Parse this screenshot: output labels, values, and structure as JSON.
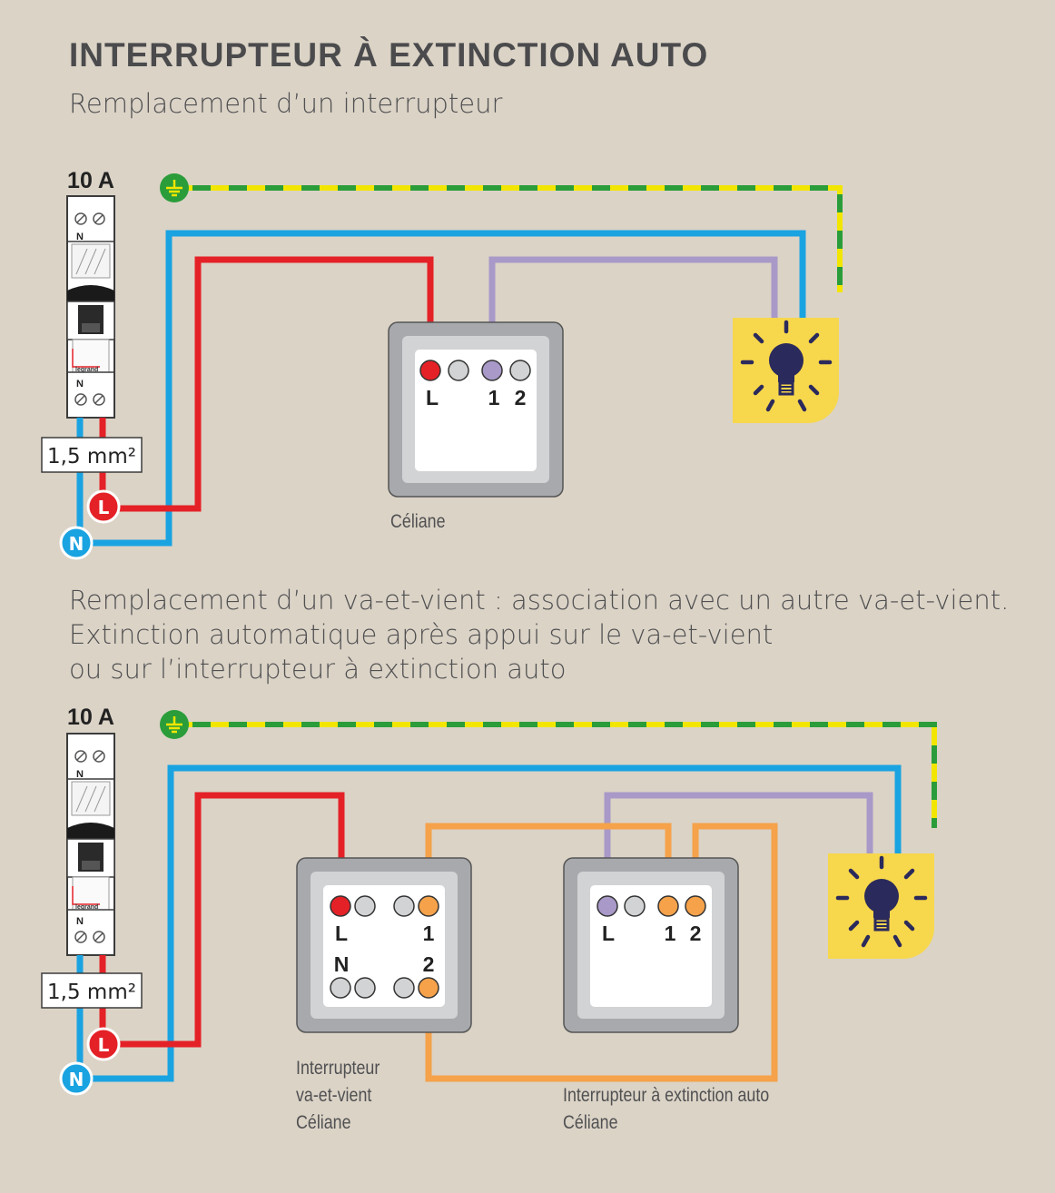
{
  "title": "INTERRUPTEUR À EXTINCTION AUTO",
  "section1": {
    "subtitle": "Remplacement d’un interrupteur",
    "breaker_rating": "10 A",
    "breaker_label_top": "N",
    "breaker_label_bottom": "N",
    "breaker_brand": "legrand",
    "cable_section": "1,5 mm²",
    "line_badge": "L",
    "neutral_badge": "N",
    "switch_terminals": [
      "L",
      "1",
      "2"
    ],
    "switch_caption": "Céliane"
  },
  "section2": {
    "subtitle_lines": [
      "Remplacement d’un va-et-vient : association avec un autre va-et-vient.",
      "Extinction automatique après appui sur le va-et-vient",
      "ou sur l’interrupteur à extinction auto"
    ],
    "breaker_rating": "10 A",
    "breaker_label_top": "N",
    "breaker_label_bottom": "N",
    "breaker_brand": "legrand",
    "cable_section": "1,5 mm²",
    "line_badge": "L",
    "neutral_badge": "N",
    "vv_terminals": [
      "L",
      "1",
      "N",
      "2"
    ],
    "vv_caption": [
      "Interrupteur",
      "va-et-vient",
      "Céliane"
    ],
    "auto_terminals": [
      "L",
      "1",
      "2"
    ],
    "auto_caption": [
      "Interrupteur à extinction auto",
      "Céliane"
    ]
  },
  "colors": {
    "background": "#dbd3c6",
    "phase": "#e42127",
    "neutral": "#1aa3e1",
    "earth_green": "#2a9d3a",
    "earth_yellow": "#f2e600",
    "return": "#a899c8",
    "traveller": "#f5a24a",
    "lamp_bg": "#f7d74b",
    "bulb": "#2b2a5c"
  },
  "icons": [
    "earth-icon",
    "bulb-icon",
    "breaker-icon"
  ]
}
